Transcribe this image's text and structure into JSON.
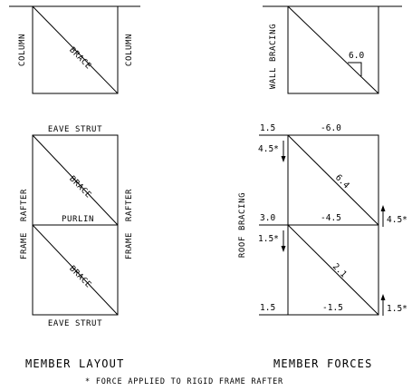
{
  "wall_layout": {
    "left_label": "COLUMN",
    "right_label": "COLUMN",
    "brace_label": "BRACE"
  },
  "wall_forces": {
    "side_label": "WALL BRACING",
    "diagonal_value": "6.0"
  },
  "roof_layout": {
    "top_label": "EAVE STRUT",
    "mid_label": "PURLIN",
    "bottom_label": "EAVE STRUT",
    "left_upper_label": "RAFTER",
    "left_lower_label": "FRAME",
    "right_upper_label": "RAFTER",
    "right_lower_label": "FRAME",
    "brace_upper_label": "BRACE",
    "brace_lower_label": "BRACE"
  },
  "roof_forces": {
    "side_label": "ROOF BRACING",
    "top_left": "1.5",
    "top_force": "-6.0",
    "left_upper": "4.5*",
    "diag_upper": "6.4",
    "mid_left": "3.0",
    "mid_force": "-4.5",
    "right_upper": "4.5*",
    "left_lower": "1.5*",
    "diag_lower": "2.1",
    "bottom_left": "1.5",
    "bottom_force": "-1.5",
    "right_lower": "1.5*"
  },
  "captions": {
    "left": "MEMBER LAYOUT",
    "right": "MEMBER FORCES",
    "note": "* FORCE APPLIED TO RIGID FRAME RAFTER"
  }
}
